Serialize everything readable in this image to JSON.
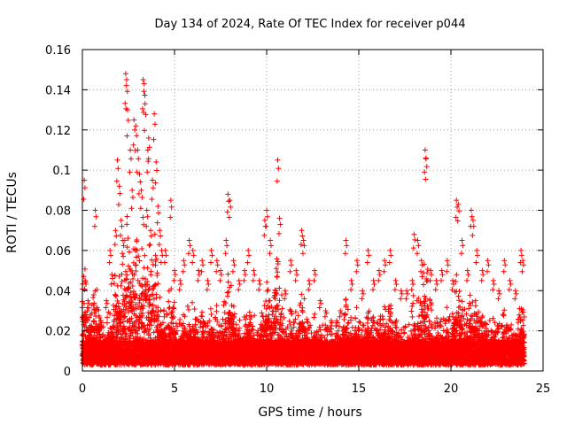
{
  "chart_data": {
    "type": "scatter",
    "title": "Day 134 of 2024, Rate Of TEC Index for receiver p044",
    "xlabel": "GPS time / hours",
    "ylabel": "ROTI / TECUs",
    "xlim": [
      0,
      25
    ],
    "ylim": [
      0,
      0.16
    ],
    "x_ticks": [
      0,
      5,
      10,
      15,
      20,
      25
    ],
    "y_ticks": [
      0,
      0.02,
      0.04,
      0.06,
      0.08,
      0.1,
      0.12,
      0.14,
      0.16
    ],
    "x_tick_labels": [
      "0",
      "5",
      "10",
      "15",
      "20",
      "25"
    ],
    "y_tick_labels": [
      "0",
      "0.02",
      "0.04",
      "0.06",
      "0.08",
      "0.1",
      "0.12",
      "0.14",
      "0.16"
    ],
    "grid": true,
    "marker": "+",
    "color": "#ff0000",
    "series": [
      {
        "name": "ROTI",
        "x": [
          0.1,
          0.15,
          0.2,
          0.3,
          0.5,
          0.7,
          1.0,
          1.3,
          1.5,
          1.6,
          1.8,
          1.9,
          2.0,
          2.1,
          2.2,
          2.35,
          2.4,
          2.45,
          2.6,
          2.7,
          2.8,
          2.9,
          3.0,
          3.1,
          3.2,
          3.3,
          3.35,
          3.4,
          3.5,
          3.55,
          3.6,
          3.7,
          3.8,
          3.9,
          4.0,
          4.1,
          4.2,
          4.3,
          4.5,
          4.8,
          5.0,
          5.3,
          5.5,
          5.8,
          6.0,
          6.3,
          6.5,
          6.8,
          7.0,
          7.3,
          7.5,
          7.8,
          7.9,
          8.0,
          8.2,
          8.5,
          8.8,
          9.0,
          9.3,
          9.6,
          9.9,
          10.0,
          10.2,
          10.5,
          10.6,
          10.7,
          11.0,
          11.3,
          11.6,
          11.9,
          12.0,
          12.3,
          12.6,
          12.9,
          13.2,
          13.5,
          13.8,
          14.0,
          14.3,
          14.6,
          14.9,
          15.2,
          15.5,
          15.8,
          16.1,
          16.4,
          16.7,
          17.0,
          17.3,
          17.6,
          17.9,
          18.0,
          18.2,
          18.4,
          18.6,
          18.65,
          18.9,
          19.2,
          19.5,
          19.8,
          20.1,
          20.3,
          20.4,
          20.6,
          20.9,
          21.1,
          21.2,
          21.4,
          21.7,
          22.0,
          22.3,
          22.6,
          22.9,
          23.2,
          23.5,
          23.8,
          23.9
        ],
        "y": [
          0.095,
          0.045,
          0.028,
          0.035,
          0.022,
          0.08,
          0.025,
          0.035,
          0.06,
          0.048,
          0.07,
          0.105,
          0.092,
          0.075,
          0.065,
          0.148,
          0.145,
          0.13,
          0.11,
          0.09,
          0.125,
          0.122,
          0.11,
          0.098,
          0.09,
          0.145,
          0.143,
          0.133,
          0.08,
          0.11,
          0.116,
          0.07,
          0.095,
          0.128,
          0.104,
          0.082,
          0.07,
          0.06,
          0.06,
          0.085,
          0.05,
          0.045,
          0.055,
          0.065,
          0.06,
          0.05,
          0.055,
          0.045,
          0.06,
          0.055,
          0.05,
          0.065,
          0.088,
          0.085,
          0.055,
          0.045,
          0.05,
          0.06,
          0.05,
          0.045,
          0.075,
          0.08,
          0.065,
          0.04,
          0.105,
          0.076,
          0.04,
          0.055,
          0.05,
          0.07,
          0.065,
          0.045,
          0.05,
          0.035,
          0.03,
          0.025,
          0.025,
          0.03,
          0.065,
          0.045,
          0.055,
          0.04,
          0.06,
          0.045,
          0.05,
          0.055,
          0.06,
          0.045,
          0.04,
          0.04,
          0.045,
          0.068,
          0.065,
          0.055,
          0.11,
          0.106,
          0.05,
          0.045,
          0.05,
          0.055,
          0.045,
          0.085,
          0.083,
          0.065,
          0.05,
          0.08,
          0.075,
          0.06,
          0.05,
          0.055,
          0.045,
          0.04,
          0.055,
          0.045,
          0.04,
          0.06,
          0.055
        ]
      }
    ],
    "dense_band": {
      "base": 0.003,
      "core": 0.012
    }
  }
}
